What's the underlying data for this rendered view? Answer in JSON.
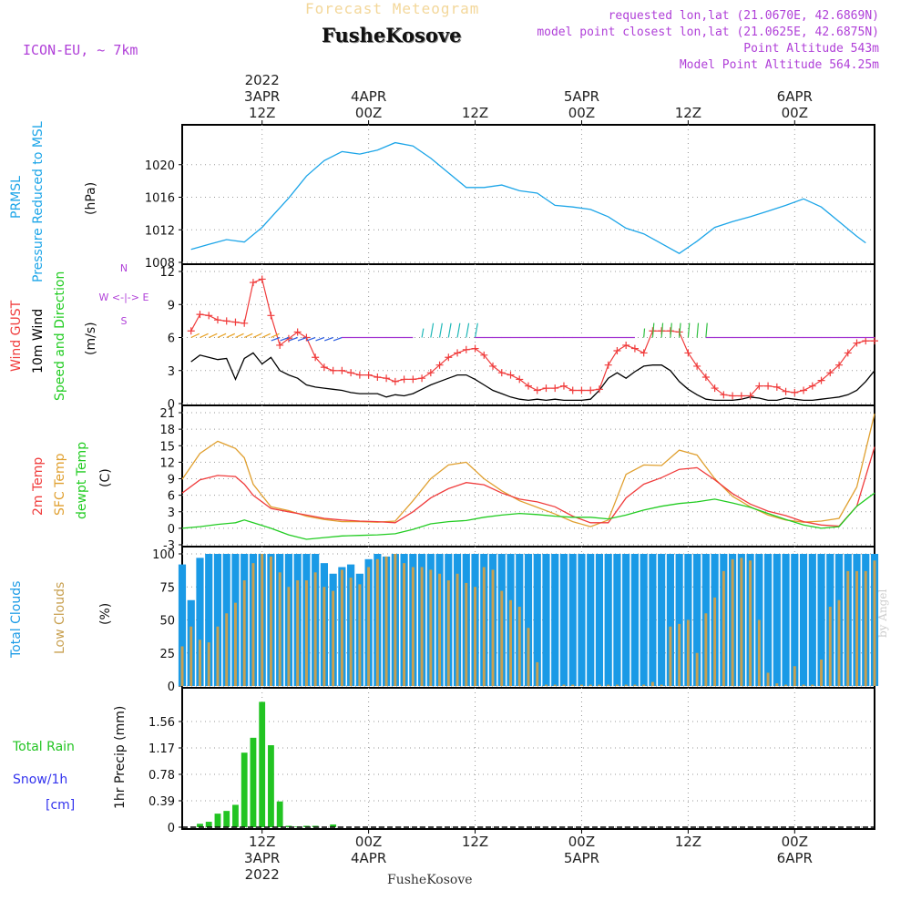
{
  "header": {
    "title": "Forecast Meteogram",
    "station": "FusheKosove",
    "model": "ICON-EU, ~ 7km",
    "requested": "requested lon,lat (21.0670E, 42.6869N)",
    "closest": "model point closest lon,lat (21.0625E, 42.6875N)",
    "altitude": "Point Altitude 543m",
    "model_altitude": "Model Point Altitude 564.25m",
    "footer": "FusheKosove",
    "credit": "by Angel"
  },
  "time_axis": {
    "top_labels": [
      {
        "t": 12,
        "lines": [
          "2022",
          "3APR",
          "12Z"
        ]
      },
      {
        "t": 24,
        "lines": [
          "4APR",
          "00Z"
        ]
      },
      {
        "t": 36,
        "lines": [
          "12Z"
        ]
      },
      {
        "t": 48,
        "lines": [
          "5APR",
          "00Z"
        ]
      },
      {
        "t": 60,
        "lines": [
          "12Z"
        ]
      },
      {
        "t": 72,
        "lines": [
          "6APR",
          "00Z"
        ]
      }
    ],
    "bottom_labels": [
      {
        "t": 12,
        "lines": [
          "12Z",
          "3APR",
          "2022"
        ]
      },
      {
        "t": 24,
        "lines": [
          "00Z",
          "4APR"
        ]
      },
      {
        "t": 36,
        "lines": [
          "12Z"
        ]
      },
      {
        "t": 48,
        "lines": [
          "00Z",
          "5APR"
        ]
      },
      {
        "t": 60,
        "lines": [
          "12Z"
        ]
      },
      {
        "t": 72,
        "lines": [
          "00Z",
          "6APR"
        ]
      }
    ]
  },
  "panel_labels": {
    "pressure": {
      "rot1": "PRMSL",
      "rot2": "Pressure Reduced to MSL",
      "unit": "(hPa)"
    },
    "wind": {
      "rot1": "Wind GUST",
      "rot2": "10m Wind",
      "rot3": "Speed and Direction",
      "unit": "(m/s)",
      "compass_top": "N",
      "compass_mid": "W <-|-> E",
      "compass_bot": "S"
    },
    "temp": {
      "rot1": "2m Temp",
      "rot2": "SFC Temp",
      "rot3": "dewpt Temp",
      "unit": "(C)"
    },
    "clouds": {
      "rot1": "Total Clouds",
      "rot2": "Low Clouds",
      "unit": "(%)"
    },
    "precip": {
      "l1": "Total  Rain",
      "l2": "Snow/1h",
      "l3": "[cm]",
      "unit": "1hr Precip (mm)"
    }
  },
  "colors": {
    "pressure": "#1ca5e8",
    "gust": "#f03c3c",
    "wind": "#000000",
    "t2m": "#f03c3c",
    "tsfc": "#e0a030",
    "dewpt": "#22cc22",
    "total_clouds": "#1a9ae6",
    "low_clouds": "#c8a050",
    "rain": "#22c422",
    "snow": "#3333ee",
    "purple": "#b040d8"
  },
  "chart_data": {
    "type": "line",
    "x_unit": "hours from 2022-04-03 00Z",
    "x_range": [
      3,
      81
    ],
    "panels": {
      "pressure": {
        "ylim": [
          1008,
          1024
        ],
        "yticks": [
          "1008",
          "1012",
          "1016",
          "1020"
        ],
        "x": [
          4,
          6,
          8,
          10,
          12,
          13,
          15,
          17,
          19,
          21,
          23,
          25,
          27,
          29,
          31,
          33,
          35,
          37,
          39,
          41,
          43,
          45,
          47,
          49,
          51,
          53,
          55,
          57,
          59,
          61,
          63,
          65,
          67,
          69,
          71,
          73,
          75,
          77,
          79,
          80
        ],
        "values": [
          1009.6,
          1010.2,
          1010.8,
          1010.5,
          1012.3,
          1013.5,
          1015.9,
          1018.6,
          1020.5,
          1021.6,
          1021.3,
          1021.8,
          1022.7,
          1022.3,
          1020.8,
          1019.0,
          1017.2,
          1017.2,
          1017.5,
          1016.8,
          1016.5,
          1015.0,
          1014.8,
          1014.5,
          1013.6,
          1012.2,
          1011.5,
          1010.3,
          1009.1,
          1010.6,
          1012.3,
          1013.0,
          1013.6,
          1014.3,
          1015.0,
          1015.8,
          1014.8,
          1013.0,
          1011.2,
          1010.4
        ]
      },
      "wind": {
        "ylim": [
          0,
          12
        ],
        "yticks": [
          "0",
          "3",
          "6",
          "9",
          "12"
        ],
        "gust_x": [
          4,
          5,
          6,
          7,
          8,
          9,
          10,
          11,
          12,
          13,
          14,
          15,
          16,
          17,
          18,
          19,
          20,
          21,
          22,
          23,
          24,
          25,
          26,
          27,
          28,
          29,
          30,
          31,
          32,
          33,
          34,
          35,
          36,
          37,
          38,
          39,
          40,
          41,
          42,
          43,
          44,
          45,
          46,
          47,
          48,
          49,
          50,
          51,
          52,
          53,
          54,
          55,
          56,
          57,
          58,
          59,
          60,
          61,
          62,
          63,
          64,
          65,
          66,
          67,
          68,
          69,
          70,
          71,
          72,
          73,
          74,
          75,
          76,
          77,
          78,
          79,
          80,
          81
        ],
        "gust": [
          6.6,
          8.1,
          8.0,
          7.6,
          7.5,
          7.4,
          7.3,
          11.0,
          11.3,
          8.0,
          5.3,
          5.9,
          6.5,
          6.0,
          4.2,
          3.3,
          3.0,
          3.0,
          2.8,
          2.6,
          2.6,
          2.4,
          2.3,
          2.0,
          2.2,
          2.2,
          2.3,
          2.8,
          3.5,
          4.2,
          4.6,
          4.9,
          5.0,
          4.4,
          3.4,
          2.8,
          2.6,
          2.2,
          1.6,
          1.2,
          1.4,
          1.4,
          1.6,
          1.2,
          1.2,
          1.2,
          1.3,
          3.5,
          4.8,
          5.3,
          5.0,
          4.6,
          6.6,
          6.6,
          6.6,
          6.5,
          4.6,
          3.4,
          2.4,
          1.4,
          0.8,
          0.7,
          0.7,
          0.7,
          1.6,
          1.6,
          1.5,
          1.1,
          1.0,
          1.2,
          1.6,
          2.1,
          2.8,
          3.5,
          4.6,
          5.5,
          5.7,
          5.7
        ],
        "wind_x": [
          4,
          5,
          6,
          7,
          8,
          9,
          10,
          11,
          12,
          13,
          14,
          15,
          16,
          17,
          18,
          19,
          20,
          21,
          22,
          23,
          24,
          25,
          26,
          27,
          28,
          29,
          30,
          31,
          32,
          33,
          34,
          35,
          36,
          37,
          38,
          39,
          40,
          41,
          42,
          43,
          44,
          45,
          46,
          47,
          48,
          49,
          50,
          51,
          52,
          53,
          54,
          55,
          56,
          57,
          58,
          59,
          60,
          61,
          62,
          63,
          64,
          65,
          66,
          67,
          68,
          69,
          70,
          71,
          72,
          73,
          74,
          75,
          76,
          77,
          78,
          79,
          80,
          81
        ],
        "wind": [
          3.8,
          4.4,
          4.2,
          4.0,
          4.1,
          2.2,
          4.1,
          4.6,
          3.6,
          4.2,
          3.0,
          2.6,
          2.3,
          1.7,
          1.5,
          1.4,
          1.3,
          1.2,
          1.0,
          0.9,
          0.9,
          0.9,
          0.6,
          0.8,
          0.7,
          0.9,
          1.3,
          1.7,
          2.0,
          2.3,
          2.6,
          2.6,
          2.2,
          1.7,
          1.2,
          0.9,
          0.6,
          0.4,
          0.3,
          0.4,
          0.3,
          0.4,
          0.3,
          0.3,
          0.3,
          0.4,
          1.2,
          2.3,
          2.8,
          2.3,
          2.9,
          3.4,
          3.5,
          3.5,
          3.0,
          2.0,
          1.3,
          0.8,
          0.4,
          0.3,
          0.3,
          0.3,
          0.4,
          0.6,
          0.5,
          0.3,
          0.3,
          0.5,
          0.4,
          0.3,
          0.3,
          0.4,
          0.5,
          0.6,
          0.8,
          1.2,
          2.0,
          3.0
        ]
      },
      "temperature": {
        "ylim": [
          -3,
          21
        ],
        "yticks": [
          "-3",
          "0",
          "3",
          "6",
          "9",
          "12",
          "15",
          "18",
          "21"
        ],
        "x": [
          3,
          5,
          7,
          9,
          10,
          11,
          13,
          15,
          17,
          19,
          21,
          23,
          25,
          27,
          29,
          31,
          33,
          35,
          37,
          39,
          41,
          43,
          45,
          47,
          49,
          51,
          53,
          55,
          57,
          59,
          61,
          63,
          65,
          67,
          69,
          71,
          73,
          75,
          77,
          79,
          81
        ],
        "t2m": [
          6.4,
          8.8,
          9.6,
          9.4,
          8.0,
          6.0,
          3.6,
          3.0,
          2.4,
          1.8,
          1.5,
          1.3,
          1.2,
          1.0,
          3.0,
          5.5,
          7.2,
          8.3,
          7.9,
          6.4,
          5.3,
          4.8,
          3.9,
          2.2,
          1.0,
          1.0,
          5.5,
          8.0,
          9.2,
          10.7,
          11.0,
          8.8,
          6.3,
          4.4,
          3.1,
          2.3,
          1.2,
          0.6,
          0.4,
          4.0,
          14.8
        ],
        "tsfc": [
          8.9,
          13.6,
          15.8,
          14.5,
          12.8,
          8.0,
          3.9,
          3.2,
          2.2,
          1.6,
          1.2,
          1.2,
          1.1,
          1.3,
          5.0,
          9.0,
          11.5,
          12.0,
          9.0,
          6.8,
          5.0,
          3.8,
          2.6,
          1.2,
          0.3,
          1.5,
          9.8,
          11.5,
          11.4,
          14.2,
          13.3,
          9.0,
          5.8,
          3.9,
          2.4,
          1.5,
          1.1,
          1.3,
          1.8,
          7.5,
          20.8
        ],
        "dewpt": [
          0.0,
          0.3,
          0.7,
          1.0,
          1.5,
          1.0,
          0.0,
          -1.2,
          -2.0,
          -1.7,
          -1.4,
          -1.3,
          -1.2,
          -1.0,
          -0.2,
          0.8,
          1.2,
          1.4,
          2.0,
          2.4,
          2.7,
          2.5,
          2.2,
          2.0,
          2.0,
          1.7,
          2.4,
          3.3,
          4.0,
          4.5,
          4.8,
          5.3,
          4.6,
          3.8,
          2.7,
          1.6,
          0.6,
          0.0,
          0.3,
          4.0,
          6.4
        ]
      },
      "clouds": {
        "ylim": [
          0,
          100
        ],
        "yticks": [
          "0",
          "25",
          "50",
          "75",
          "100"
        ],
        "x_start": 3,
        "total": [
          92,
          65,
          97,
          100,
          100,
          100,
          100,
          100,
          100,
          100,
          100,
          100,
          100,
          100,
          100,
          100,
          93,
          85,
          90,
          92,
          85,
          96,
          100,
          98,
          100,
          100,
          100,
          100,
          100,
          100,
          100,
          100,
          100,
          100,
          100,
          100,
          100,
          100,
          100,
          100,
          100,
          100,
          100,
          100,
          100,
          100,
          100,
          100,
          100,
          100,
          100,
          100,
          100,
          100,
          100,
          100,
          100,
          100,
          100,
          100,
          100,
          100,
          100,
          100,
          100,
          100,
          100,
          100,
          100,
          100,
          100,
          100,
          100,
          100,
          100,
          100,
          100,
          100,
          100,
          100
        ],
        "low": [
          30,
          45,
          35,
          33,
          45,
          55,
          63,
          80,
          93,
          100,
          98,
          86,
          75,
          80,
          80,
          86,
          75,
          72,
          88,
          82,
          77,
          90,
          96,
          98,
          100,
          93,
          90,
          90,
          88,
          85,
          80,
          85,
          78,
          75,
          90,
          88,
          72,
          65,
          60,
          44,
          18,
          1,
          1,
          1,
          1,
          1,
          1,
          1,
          1,
          1,
          1,
          1,
          1,
          3,
          1,
          45,
          47,
          50,
          25,
          55,
          67,
          87,
          96,
          97,
          95,
          50,
          10,
          2,
          1,
          15,
          1,
          1,
          20,
          60,
          65,
          87,
          87,
          87,
          95,
          95
        ]
      },
      "precip": {
        "ylim": [
          0,
          1.95
        ],
        "yticks": [
          "0",
          "0.39",
          "0.78",
          "1.17",
          "1.56"
        ],
        "x": [
          5,
          6,
          7,
          8,
          9,
          10,
          11,
          12,
          13,
          14,
          15,
          16,
          17,
          18,
          20
        ],
        "values": [
          0.05,
          0.08,
          0.2,
          0.24,
          0.33,
          1.1,
          1.32,
          1.85,
          1.21,
          0.38,
          0.02,
          0.01,
          0.02,
          0.02,
          0.04
        ]
      }
    }
  }
}
